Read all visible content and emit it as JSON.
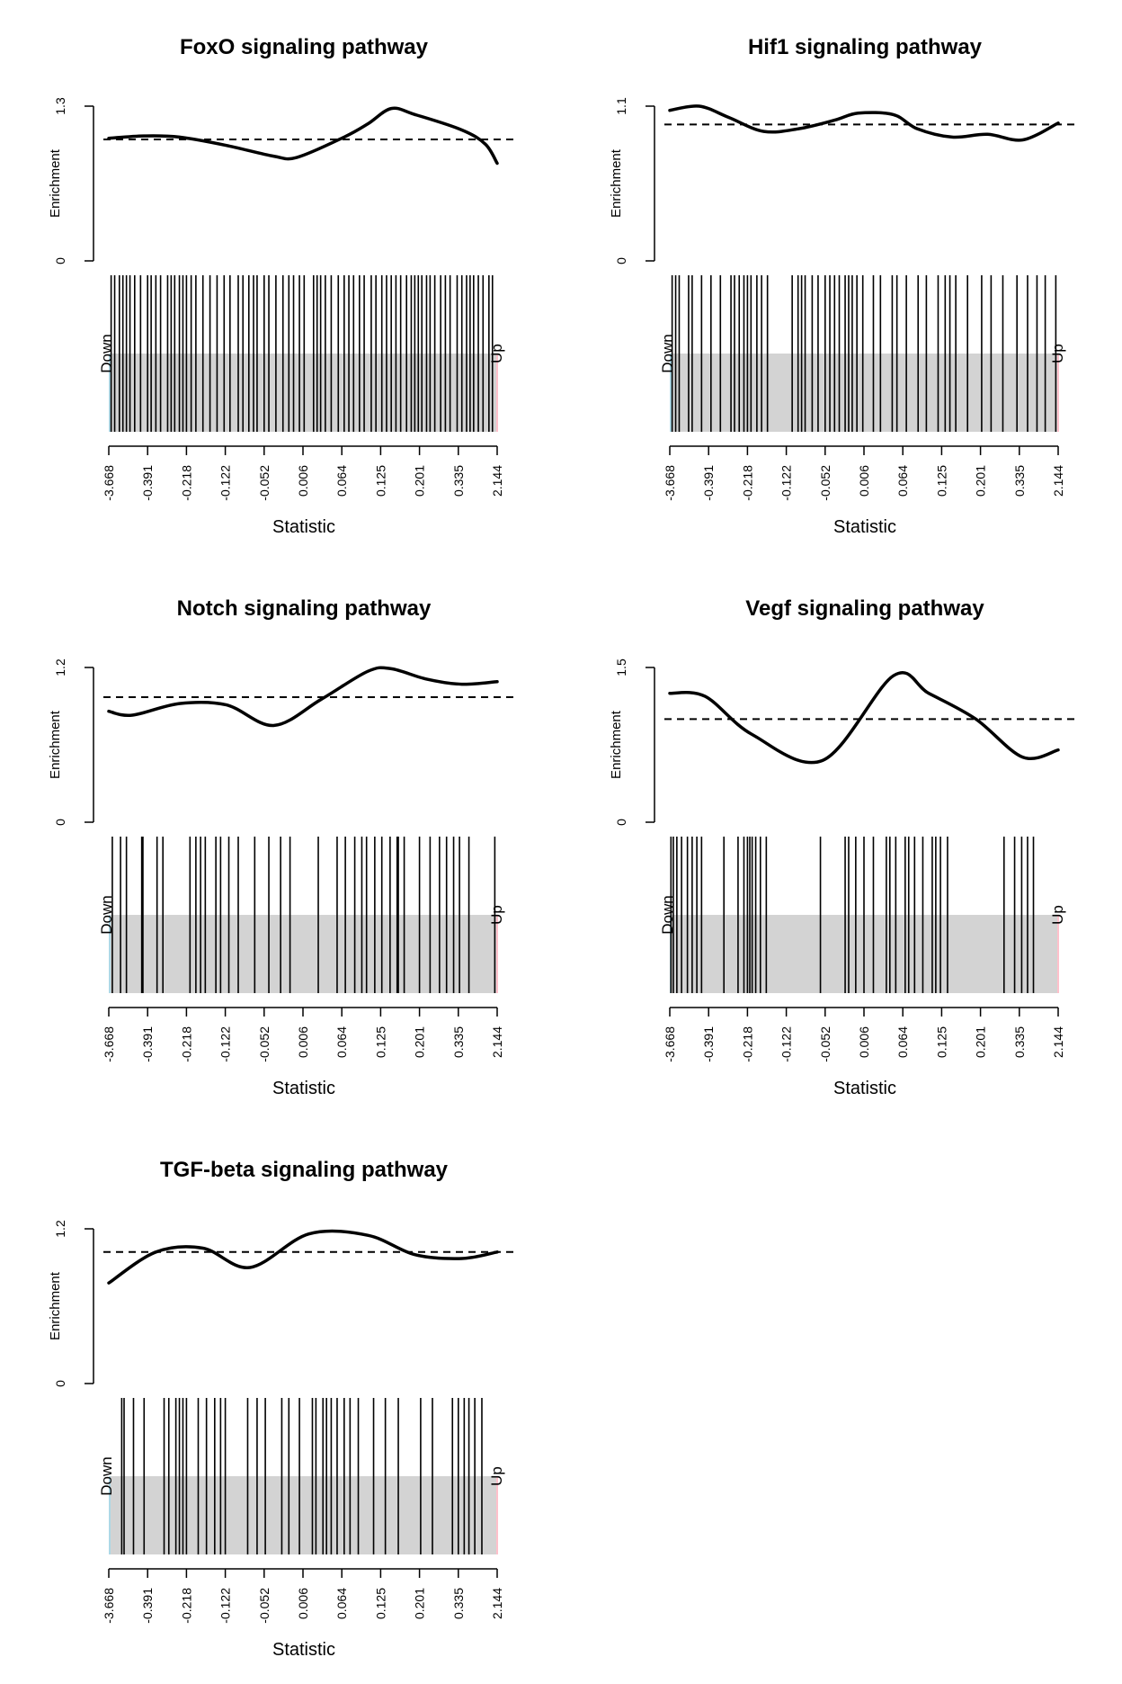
{
  "chart_data": [
    {
      "type": "line",
      "title": "FoxO signaling pathway",
      "xlabel": "Statistic",
      "ylabel": "Enrichment",
      "ylim": [
        0,
        1.3
      ],
      "yticks": [
        "0",
        "1.3"
      ],
      "xtick_labels": [
        "-3.668",
        "-0.391",
        "-0.218",
        "-0.122",
        "-0.052",
        "0.006",
        "0.064",
        "0.125",
        "0.201",
        "0.335",
        "2.144"
      ],
      "barcode_labels": {
        "left": "Down",
        "right": "Up"
      },
      "expected_line": 1.02,
      "series": [
        {
          "values": [
            [
              0,
              1.03
            ],
            [
              3,
              1.05
            ],
            [
              6,
              1.04
            ],
            [
              10,
              0.97
            ],
            [
              14,
              0.88
            ],
            [
              16,
              0.87
            ],
            [
              20,
              1.04
            ],
            [
              22,
              1.15
            ],
            [
              24,
              1.28
            ],
            [
              26,
              1.23
            ],
            [
              30,
              1.1
            ],
            [
              32,
              0.98
            ],
            [
              33,
              0.82
            ]
          ]
        }
      ],
      "gene_ranks": [
        0.2,
        0.5,
        0.9,
        1.2,
        1.5,
        1.8,
        2.2,
        2.7,
        3.3,
        3.6,
        4.0,
        4.4,
        5.0,
        5.3,
        5.6,
        6.0,
        6.3,
        6.6,
        7.0,
        7.4,
        8.0,
        8.6,
        9.2,
        9.8,
        10.3,
        11.0,
        11.4,
        11.9,
        12.3,
        12.6,
        13.2,
        13.6,
        14.2,
        14.8,
        15.3,
        15.7,
        16.2,
        16.6,
        17.4,
        17.7,
        18.0,
        18.4,
        18.9,
        19.5,
        20.0,
        20.4,
        20.8,
        21.3,
        21.7,
        22.3,
        22.7,
        23.2,
        23.6,
        24.0,
        24.4,
        24.8,
        25.3,
        25.7,
        26.0,
        26.3,
        26.6,
        27.0,
        27.3,
        27.7,
        28.2,
        28.6,
        29.0,
        29.6,
        30.0,
        30.4,
        30.7,
        31.0,
        31.4,
        31.8,
        32.3,
        32.6
      ]
    },
    {
      "type": "line",
      "title": "Hif1 signaling pathway",
      "xlabel": "Statistic",
      "ylabel": "Enrichment",
      "ylim": [
        0,
        1.1
      ],
      "yticks": [
        "0",
        "1.1"
      ],
      "xtick_labels": [
        "-3.668",
        "-0.391",
        "-0.218",
        "-0.122",
        "-0.052",
        "0.006",
        "0.064",
        "0.125",
        "0.201",
        "0.335",
        "2.144"
      ],
      "barcode_labels": {
        "left": "Down",
        "right": "Up"
      },
      "expected_line": 0.97,
      "series": [
        {
          "values": [
            [
              0,
              1.07
            ],
            [
              2.5,
              1.1
            ],
            [
              5,
              1.02
            ],
            [
              8,
              0.92
            ],
            [
              11,
              0.94
            ],
            [
              14,
              1.0
            ],
            [
              16,
              1.05
            ],
            [
              19,
              1.04
            ],
            [
              21,
              0.94
            ],
            [
              24,
              0.88
            ],
            [
              27,
              0.9
            ],
            [
              30,
              0.86
            ],
            [
              33,
              0.98
            ]
          ]
        }
      ],
      "gene_ranks": [
        0.2,
        0.5,
        0.8,
        1.6,
        1.9,
        2.7,
        3.5,
        4.3,
        5.2,
        5.5,
        5.9,
        6.3,
        6.6,
        6.9,
        7.4,
        7.8,
        8.3,
        10.4,
        10.9,
        11.2,
        11.5,
        12.1,
        12.6,
        13.2,
        13.6,
        14.0,
        14.4,
        14.9,
        15.2,
        15.5,
        15.9,
        16.4,
        17.3,
        17.9,
        18.9,
        19.3,
        20.1,
        21.1,
        21.8,
        22.8,
        23.4,
        23.8,
        24.3,
        25.3,
        26.5,
        27.3,
        28.3,
        29.5,
        30.4,
        31.2,
        31.9,
        32.8
      ]
    },
    {
      "type": "line",
      "title": "Notch signaling pathway",
      "xlabel": "Statistic",
      "ylabel": "Enrichment",
      "ylim": [
        0,
        1.2
      ],
      "yticks": [
        "0",
        "1.2"
      ],
      "xtick_labels": [
        "-3.668",
        "-0.391",
        "-0.218",
        "-0.122",
        "-0.052",
        "0.006",
        "0.064",
        "0.125",
        "0.201",
        "0.335",
        "2.144"
      ],
      "barcode_labels": {
        "left": "Down",
        "right": "Up"
      },
      "expected_line": 0.97,
      "series": [
        {
          "values": [
            [
              0,
              0.86
            ],
            [
              2,
              0.83
            ],
            [
              6,
              0.92
            ],
            [
              10,
              0.91
            ],
            [
              14,
              0.75
            ],
            [
              18,
              0.95
            ],
            [
              22,
              1.17
            ],
            [
              24,
              1.19
            ],
            [
              27,
              1.11
            ],
            [
              30,
              1.07
            ],
            [
              33,
              1.09
            ]
          ]
        }
      ],
      "gene_ranks": [
        0.3,
        1.0,
        1.5,
        2.8,
        2.9,
        4.1,
        4.6,
        6.9,
        7.4,
        7.8,
        8.2,
        9.1,
        9.5,
        10.2,
        11.0,
        12.4,
        13.6,
        14.6,
        15.4,
        17.8,
        19.4,
        20.1,
        20.9,
        21.5,
        21.9,
        22.6,
        23.2,
        23.9,
        24.5,
        24.6,
        25.1,
        26.4,
        27.3,
        28.1,
        28.7,
        29.3,
        29.8,
        30.6,
        32.8
      ]
    },
    {
      "type": "line",
      "title": "Vegf signaling pathway",
      "xlabel": "Statistic",
      "ylabel": "Enrichment",
      "ylim": [
        0,
        1.5
      ],
      "yticks": [
        "0",
        "1.5"
      ],
      "xtick_labels": [
        "-3.668",
        "-0.391",
        "-0.218",
        "-0.122",
        "-0.052",
        "0.006",
        "0.064",
        "0.125",
        "0.201",
        "0.335",
        "2.144"
      ],
      "barcode_labels": {
        "left": "Down",
        "right": "Up"
      },
      "expected_line": 1.0,
      "series": [
        {
          "values": [
            [
              0,
              1.25
            ],
            [
              3,
              1.22
            ],
            [
              7,
              0.85
            ],
            [
              13,
              0.6
            ],
            [
              19,
              1.42
            ],
            [
              22,
              1.25
            ],
            [
              26,
              1.0
            ],
            [
              30,
              0.63
            ],
            [
              33,
              0.7
            ]
          ]
        }
      ],
      "gene_ranks": [
        0.1,
        0.3,
        0.6,
        1.0,
        1.5,
        1.9,
        2.3,
        2.7,
        4.6,
        5.8,
        6.3,
        6.6,
        6.8,
        7.0,
        7.3,
        7.7,
        8.2,
        12.8,
        14.9,
        15.2,
        15.8,
        16.5,
        17.3,
        18.4,
        18.7,
        19.2,
        20.0,
        20.3,
        20.8,
        21.5,
        22.3,
        22.6,
        23.0,
        23.6,
        28.4,
        29.3,
        29.9,
        30.4,
        30.9
      ]
    },
    {
      "type": "line",
      "title": "TGF-beta signaling pathway",
      "xlabel": "Statistic",
      "ylabel": "Enrichment",
      "ylim": [
        0,
        1.2
      ],
      "yticks": [
        "0",
        "1.2"
      ],
      "xtick_labels": [
        "-3.668",
        "-0.391",
        "-0.218",
        "-0.122",
        "-0.052",
        "0.006",
        "0.064",
        "0.125",
        "0.201",
        "0.335",
        "2.144"
      ],
      "barcode_labels": {
        "left": "Down",
        "right": "Up"
      },
      "expected_line": 1.02,
      "series": [
        {
          "values": [
            [
              0,
              0.78
            ],
            [
              4,
              1.02
            ],
            [
              8,
              1.05
            ],
            [
              12,
              0.9
            ],
            [
              17,
              1.16
            ],
            [
              22,
              1.15
            ],
            [
              26,
              1.0
            ],
            [
              30,
              0.97
            ],
            [
              33,
              1.02
            ]
          ]
        }
      ],
      "gene_ranks": [
        1.1,
        1.3,
        2.1,
        3.0,
        4.7,
        5.1,
        5.7,
        6.0,
        6.3,
        6.6,
        7.6,
        8.3,
        9.0,
        9.5,
        9.9,
        11.8,
        12.6,
        13.3,
        14.7,
        15.3,
        16.2,
        17.3,
        17.6,
        18.2,
        18.5,
        18.9,
        19.4,
        20.0,
        20.5,
        21.2,
        22.5,
        23.5,
        24.6,
        26.5,
        27.5,
        29.2,
        29.7,
        30.2,
        30.6,
        31.1,
        31.7
      ]
    }
  ]
}
